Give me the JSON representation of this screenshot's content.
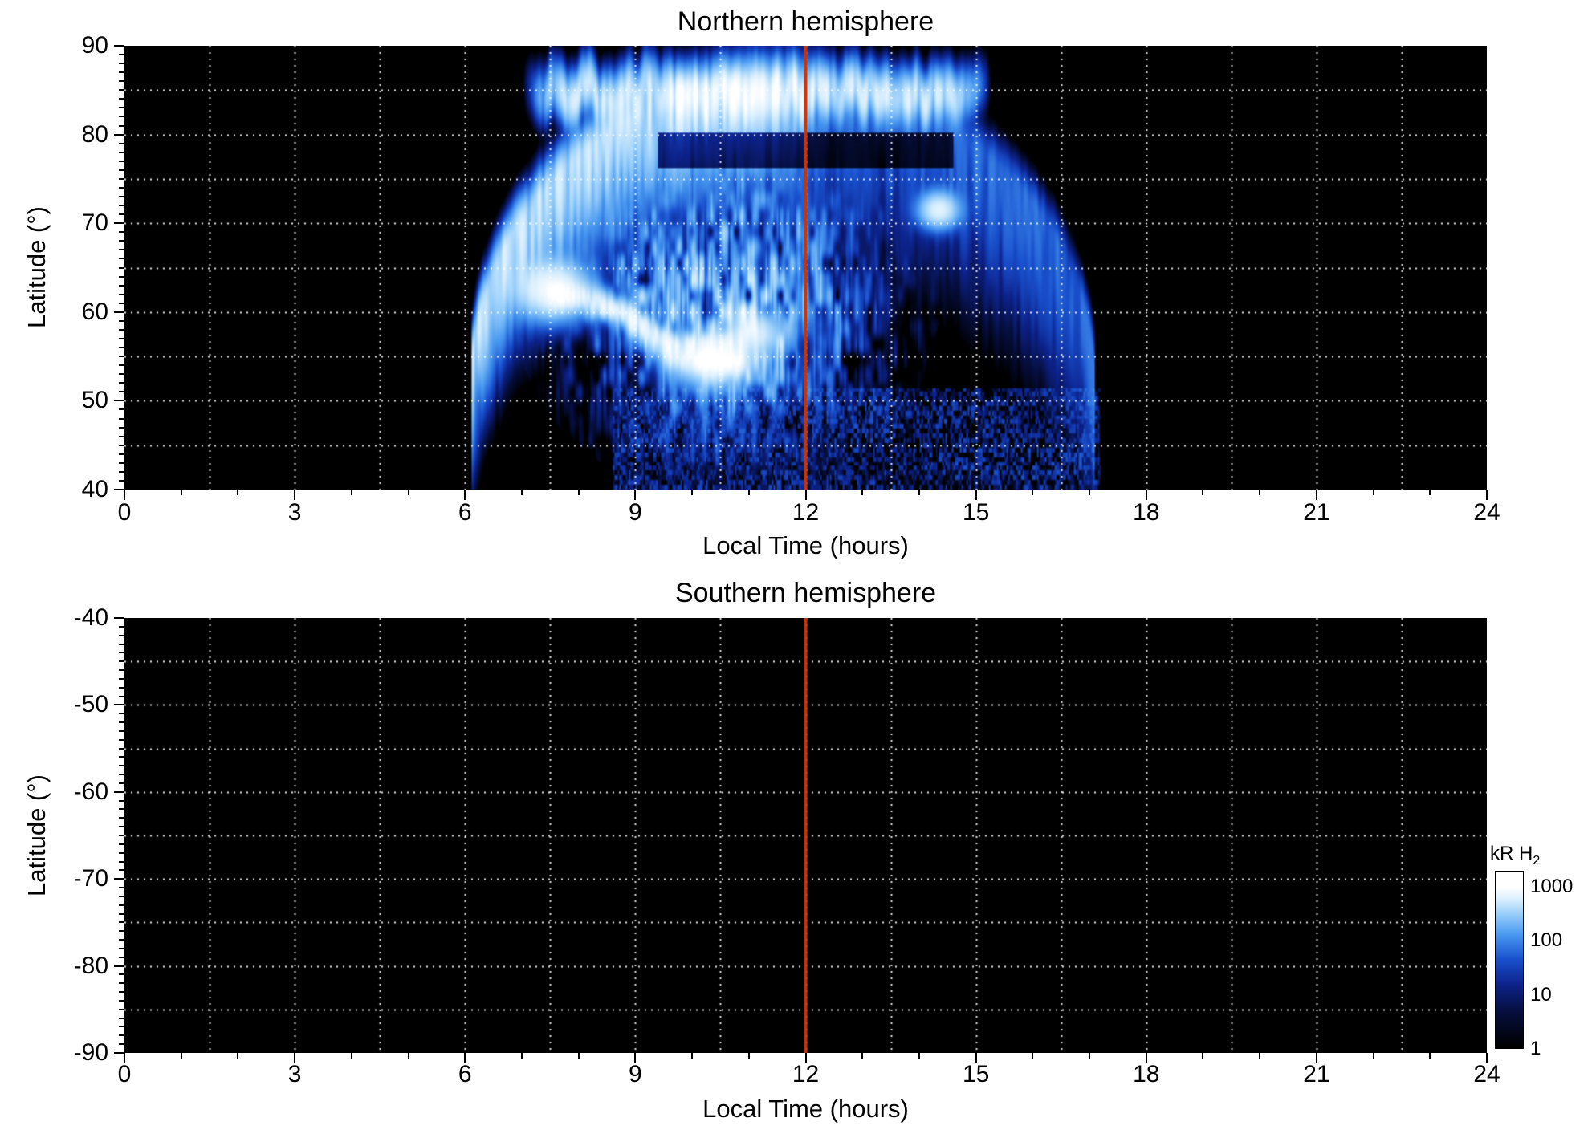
{
  "chart_data": [
    {
      "type": "heatmap",
      "title": "Northern hemisphere",
      "xlabel": "Local Time (hours)",
      "ylabel": "Latitude (°)",
      "xlim": [
        0,
        24
      ],
      "ylim": [
        40,
        90
      ],
      "xticks": [
        0,
        3,
        6,
        9,
        12,
        15,
        18,
        21,
        24
      ],
      "xtick_labels": [
        "0",
        "3",
        "6",
        "9",
        "12",
        "15",
        "18",
        "21",
        "24"
      ],
      "yticks": [
        40,
        50,
        60,
        70,
        80,
        90
      ],
      "ytick_labels": [
        "40",
        "50",
        "60",
        "70",
        "80",
        "90"
      ],
      "xminor": 1,
      "yminor": 1,
      "grid": {
        "x_interval": 1.5,
        "y_interval": 5,
        "style": "dotted",
        "color": "#ffffff"
      },
      "marker_line": {
        "x": 12,
        "color": "#cc3300",
        "width": 4
      },
      "background": "#000000",
      "emission_extent": {
        "t_min": 6.05,
        "t_max": 17.22
      },
      "features": [
        {
          "kind": "cap",
          "t_min": 7.0,
          "t_max": 15.3,
          "edge": 0.9,
          "lat_center": 84.6,
          "lat_sigma": 2.3,
          "wobble": 1.3,
          "amp": 420
        },
        {
          "kind": "arch",
          "t_center": 11.6,
          "t_halfwidth": 5.5,
          "lat_base": 51,
          "lat_amp": 34.5,
          "sigma_above": 2.6,
          "sigma_below": 7.5,
          "sigma_below_dusk": 11,
          "amp_dawn": 430,
          "amp_dusk": 60
        },
        {
          "kind": "gap",
          "t_min": 9.4,
          "t_max": 14.6,
          "lat_min": 76.3,
          "lat_max": 80.3,
          "factor": 0.05
        },
        {
          "kind": "filaments",
          "t_center": 10.6,
          "t_sigma": 1.6,
          "lat_center": 61,
          "lat_sigma": 9.5,
          "amp": 520
        },
        {
          "kind": "blob",
          "t": 7.55,
          "lat": 62.5,
          "t_sigma": 0.5,
          "lat_sigma": 2.6,
          "amp": 850
        },
        {
          "kind": "blob",
          "t": 10.35,
          "lat": 54.5,
          "t_sigma": 0.55,
          "lat_sigma": 2.4,
          "amp": 750
        },
        {
          "kind": "blob",
          "t": 11.1,
          "lat": 57.5,
          "t_sigma": 0.5,
          "lat_sigma": 2.2,
          "amp": 520
        },
        {
          "kind": "blob",
          "t": 14.35,
          "lat": 71.5,
          "t_sigma": 0.28,
          "lat_sigma": 1.6,
          "amp": 650
        },
        {
          "kind": "streak",
          "from": [
            7.7,
            61.8
          ],
          "to": [
            10.8,
            53.6
          ],
          "sigma": 0.2,
          "wave": 1.2,
          "lat_scale": 0.156,
          "amp": 500
        },
        {
          "kind": "streak",
          "from": [
            8.3,
            60.2
          ],
          "to": [
            10.3,
            56.2
          ],
          "sigma": 0.16,
          "wave": 0.8,
          "lat_scale": 0.156,
          "amp": 320
        },
        {
          "kind": "speckle",
          "t_min": 8.6,
          "t_max": 17.2,
          "lat_min": 40,
          "lat_max": 51.5,
          "freq_t": 28,
          "freq_lat": 1.9,
          "amp": 55
        }
      ]
    },
    {
      "type": "heatmap",
      "title": "Southern hemisphere",
      "xlabel": "Local Time (hours)",
      "ylabel": "Latitude (°)",
      "xlim": [
        0,
        24
      ],
      "ylim": [
        -90,
        -40
      ],
      "xticks": [
        0,
        3,
        6,
        9,
        12,
        15,
        18,
        21,
        24
      ],
      "xtick_labels": [
        "0",
        "3",
        "6",
        "9",
        "12",
        "15",
        "18",
        "21",
        "24"
      ],
      "yticks": [
        -90,
        -80,
        -70,
        -60,
        -50,
        -40
      ],
      "ytick_labels": [
        "-90",
        "-80",
        "-70",
        "-60",
        "-50",
        "-40"
      ],
      "xminor": 1,
      "yminor": 1,
      "grid": {
        "x_interval": 1.5,
        "y_interval": 5,
        "style": "dotted",
        "color": "#ffffff"
      },
      "marker_line": {
        "x": 12,
        "color": "#cc3300",
        "width": 4
      },
      "background": "#000000",
      "features": []
    }
  ],
  "colorbar": {
    "label": "kR H₂",
    "label_main": "kR H",
    "label_sub": "2",
    "scale": "log",
    "range": [
      1,
      2000
    ],
    "tick_values": [
      1000,
      100,
      10,
      1
    ],
    "tick_labels": [
      "1000",
      "100",
      "10",
      "1"
    ]
  },
  "colormap": {
    "log_max": 1000,
    "stops": [
      [
        0.0,
        [
          0,
          0,
          0
        ]
      ],
      [
        0.22,
        [
          6,
          14,
          60
        ]
      ],
      [
        0.4,
        [
          13,
          35,
          140
        ]
      ],
      [
        0.55,
        [
          25,
          80,
          205
        ]
      ],
      [
        0.7,
        [
          70,
          150,
          240
        ]
      ],
      [
        0.83,
        [
          150,
          205,
          250
        ]
      ],
      [
        0.92,
        [
          215,
          238,
          253
        ]
      ],
      [
        1.0,
        [
          255,
          255,
          255
        ]
      ]
    ]
  }
}
